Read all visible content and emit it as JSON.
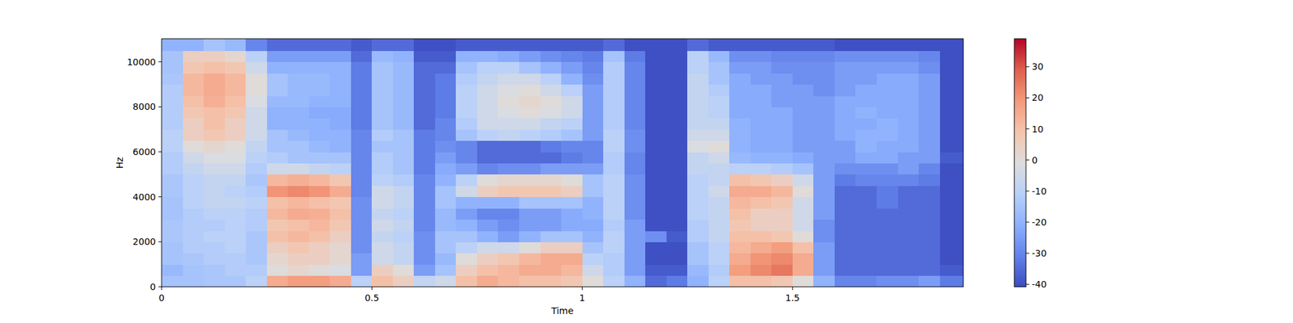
{
  "chart_data": {
    "type": "heatmap",
    "xlabel": "Time",
    "ylabel": "Hz",
    "xlim": [
      0,
      1.906
    ],
    "ylim": [
      0,
      11025
    ],
    "xticks": [
      0,
      0.5,
      1,
      1.5
    ],
    "yticks": [
      0,
      2000,
      4000,
      6000,
      8000,
      10000
    ],
    "x_bins": [
      0,
      0.05,
      0.1,
      0.15,
      0.2,
      0.25,
      0.3,
      0.35,
      0.4,
      0.45,
      0.5,
      0.55,
      0.6,
      0.65,
      0.7,
      0.75,
      0.8,
      0.85,
      0.9,
      0.95,
      1,
      1.05,
      1.1,
      1.15,
      1.2,
      1.25,
      1.3,
      1.35,
      1.4,
      1.45,
      1.5,
      1.55,
      1.6,
      1.65,
      1.7,
      1.75,
      1.8,
      1.85,
      1.906
    ],
    "y_bins": [
      0,
      500,
      1000,
      1500,
      2000,
      2500,
      3000,
      3500,
      4000,
      4500,
      5000,
      5500,
      6000,
      6500,
      7000,
      7500,
      8000,
      8500,
      9000,
      9500,
      10000,
      10500,
      11025
    ],
    "clim": [
      -40.8,
      39
    ],
    "cticks": [
      -40,
      -30,
      -20,
      -10,
      0,
      10,
      20,
      30
    ],
    "values": [
      [
        -15,
        -18,
        -15,
        -15,
        -14,
        -14,
        -15,
        -15,
        -14,
        -14,
        -12,
        -12,
        -10,
        -10,
        -12,
        -12,
        -12,
        -12,
        -14,
        -15,
        -15,
        -20
      ],
      [
        -15,
        -15,
        -14,
        -12,
        -12,
        -12,
        -12,
        -10,
        -10,
        -10,
        -8,
        -5,
        0,
        5,
        5,
        8,
        10,
        12,
        12,
        8,
        5,
        -20
      ],
      [
        -14,
        -14,
        -12,
        -12,
        -10,
        -12,
        -10,
        -8,
        -8,
        -8,
        -5,
        -2,
        2,
        8,
        10,
        10,
        14,
        15,
        15,
        10,
        5,
        -15
      ],
      [
        -14,
        -12,
        -12,
        -10,
        -10,
        -10,
        -10,
        -8,
        -10,
        -8,
        -5,
        -2,
        0,
        5,
        5,
        8,
        10,
        12,
        12,
        8,
        2,
        -18
      ],
      [
        -10,
        -12,
        -14,
        -14,
        -14,
        -12,
        -12,
        -10,
        -12,
        -14,
        -12,
        -10,
        -8,
        -5,
        -5,
        -5,
        -2,
        0,
        0,
        -5,
        -10,
        -30
      ],
      [
        15,
        0,
        2,
        5,
        10,
        8,
        12,
        10,
        20,
        12,
        -5,
        -12,
        -15,
        -15,
        -20,
        -20,
        -18,
        -15,
        -15,
        -20,
        -25,
        -35
      ],
      [
        18,
        2,
        5,
        8,
        12,
        10,
        15,
        12,
        22,
        14,
        -5,
        -15,
        -15,
        -18,
        -20,
        -20,
        -18,
        -18,
        -18,
        -20,
        -25,
        -35
      ],
      [
        18,
        0,
        5,
        5,
        10,
        12,
        14,
        10,
        20,
        12,
        -8,
        -15,
        -18,
        -20,
        -20,
        -22,
        -20,
        -18,
        -18,
        -20,
        -25,
        -35
      ],
      [
        15,
        -2,
        2,
        2,
        5,
        8,
        10,
        8,
        15,
        8,
        -10,
        -15,
        -20,
        -20,
        -22,
        -22,
        -20,
        -20,
        -20,
        -20,
        -25,
        -35
      ],
      [
        -10,
        -25,
        -25,
        -28,
        -28,
        -28,
        -28,
        -28,
        -30,
        -30,
        -30,
        -30,
        -30,
        -30,
        -32,
        -32,
        -32,
        -32,
        -32,
        -32,
        -35,
        -38
      ],
      [
        10,
        5,
        -5,
        -5,
        -8,
        -5,
        -8,
        -5,
        -5,
        -10,
        -12,
        -12,
        -15,
        -12,
        -15,
        -15,
        -15,
        -15,
        -15,
        -15,
        -18,
        -35
      ],
      [
        5,
        0,
        -8,
        -8,
        -10,
        -8,
        -10,
        -8,
        -8,
        -12,
        -15,
        -15,
        -15,
        -15,
        -18,
        -18,
        -18,
        -18,
        -18,
        -18,
        -20,
        -35
      ],
      [
        -8,
        -25,
        -28,
        -28,
        -28,
        -30,
        -30,
        -30,
        -30,
        -30,
        -32,
        -32,
        -32,
        -32,
        -35,
        -35,
        -35,
        -35,
        -35,
        -35,
        -38,
        -40
      ],
      [
        -5,
        -15,
        -18,
        -15,
        -15,
        -18,
        -18,
        -15,
        -15,
        -20,
        -22,
        -25,
        -28,
        -30,
        -30,
        -32,
        -32,
        -32,
        -32,
        -35,
        -38,
        -40
      ],
      [
        10,
        5,
        0,
        -10,
        -15,
        -20,
        -25,
        -20,
        -5,
        -10,
        -25,
        -30,
        -30,
        -15,
        -12,
        -10,
        -10,
        -10,
        -12,
        -15,
        -20,
        -38
      ],
      [
        15,
        10,
        5,
        -5,
        -20,
        -25,
        -30,
        -20,
        5,
        0,
        -30,
        -35,
        -35,
        -10,
        -5,
        -5,
        -5,
        -5,
        -8,
        -10,
        -20,
        -38
      ],
      [
        12,
        12,
        8,
        -5,
        -25,
        -28,
        -30,
        -20,
        8,
        2,
        -28,
        -35,
        -35,
        -8,
        -5,
        -2,
        0,
        -2,
        -5,
        -10,
        -22,
        -38
      ],
      [
        10,
        15,
        12,
        0,
        -20,
        -25,
        -25,
        -15,
        8,
        2,
        -28,
        -35,
        -35,
        -10,
        -5,
        0,
        2,
        0,
        -5,
        -15,
        -25,
        -38
      ],
      [
        10,
        15,
        15,
        5,
        -15,
        -25,
        -25,
        -15,
        8,
        2,
        -25,
        -35,
        -32,
        -12,
        -8,
        -2,
        0,
        -5,
        -10,
        -20,
        -28,
        -38
      ],
      [
        8,
        12,
        15,
        5,
        -15,
        -22,
        -22,
        -15,
        5,
        0,
        -25,
        -32,
        -30,
        -15,
        -10,
        -5,
        -5,
        -10,
        -20,
        -25,
        -30,
        -38
      ],
      [
        0,
        -5,
        -10,
        -15,
        -20,
        -22,
        -20,
        -20,
        -15,
        -15,
        -25,
        -30,
        -30,
        -25,
        -25,
        -25,
        -25,
        -25,
        -28,
        -30,
        -32,
        -38
      ],
      [
        -10,
        -12,
        -12,
        -10,
        -10,
        -12,
        -10,
        -10,
        -10,
        -10,
        -12,
        -12,
        -10,
        -10,
        -12,
        -12,
        -12,
        -12,
        -12,
        -12,
        -15,
        -35
      ],
      [
        -20,
        -25,
        -25,
        -25,
        -25,
        -25,
        -28,
        -28,
        -28,
        -28,
        -30,
        -30,
        -28,
        -28,
        -30,
        -30,
        -30,
        -30,
        -30,
        -30,
        -32,
        -40
      ],
      [
        -35,
        -38,
        -40,
        -40,
        -28,
        -40,
        -40,
        -40,
        -40,
        -40,
        -40,
        -40,
        -40,
        -40,
        -40,
        -40,
        -40,
        -40,
        -40,
        -40,
        -40,
        -40
      ],
      [
        -32,
        -38,
        -40,
        -40,
        -38,
        -40,
        -40,
        -40,
        -40,
        -40,
        -40,
        -40,
        -40,
        -40,
        -40,
        -40,
        -40,
        -40,
        -40,
        -40,
        -40,
        -40
      ],
      [
        -20,
        -18,
        -15,
        -15,
        -12,
        -12,
        -10,
        -10,
        -10,
        -10,
        -8,
        -8,
        -2,
        -5,
        -8,
        -8,
        -8,
        -8,
        -8,
        -10,
        -10,
        -35
      ],
      [
        -10,
        -12,
        -10,
        -10,
        -8,
        -8,
        -8,
        -8,
        -5,
        -8,
        -8,
        -5,
        0,
        -5,
        -8,
        -10,
        -10,
        -12,
        -15,
        -15,
        -18,
        -38
      ],
      [
        10,
        18,
        15,
        12,
        10,
        8,
        10,
        12,
        15,
        10,
        -10,
        -18,
        -20,
        -20,
        -20,
        -22,
        -22,
        -22,
        -22,
        -25,
        -28,
        -38
      ],
      [
        10,
        22,
        20,
        15,
        10,
        5,
        5,
        10,
        15,
        8,
        -10,
        -20,
        -22,
        -22,
        -22,
        -22,
        -22,
        -22,
        -25,
        -25,
        -28,
        -38
      ],
      [
        8,
        25,
        22,
        18,
        8,
        5,
        5,
        8,
        12,
        5,
        -12,
        -20,
        -22,
        -22,
        -22,
        -22,
        -25,
        -25,
        -25,
        -28,
        -30,
        -38
      ],
      [
        0,
        15,
        15,
        10,
        0,
        -5,
        -5,
        -5,
        0,
        -5,
        -15,
        -22,
        -25,
        -25,
        -25,
        -25,
        -25,
        -25,
        -28,
        -28,
        -30,
        -38
      ],
      [
        -20,
        -25,
        -25,
        -25,
        -28,
        -28,
        -25,
        -25,
        -25,
        -25,
        -25,
        -25,
        -25,
        -25,
        -25,
        -25,
        -25,
        -28,
        -28,
        -28,
        -30,
        -38
      ],
      [
        -30,
        -35,
        -35,
        -35,
        -35,
        -35,
        -35,
        -35,
        -35,
        -32,
        -28,
        -25,
        -25,
        -22,
        -22,
        -22,
        -22,
        -25,
        -25,
        -25,
        -28,
        -40
      ],
      [
        -30,
        -35,
        -35,
        -35,
        -35,
        -35,
        -35,
        -35,
        -35,
        -30,
        -28,
        -22,
        -20,
        -20,
        -22,
        -20,
        -22,
        -22,
        -25,
        -25,
        -28,
        -40
      ],
      [
        -28,
        -35,
        -35,
        -35,
        -35,
        -35,
        -35,
        -32,
        -32,
        -30,
        -28,
        -22,
        -22,
        -20,
        -20,
        -22,
        -22,
        -22,
        -22,
        -25,
        -28,
        -40
      ],
      [
        -28,
        -35,
        -35,
        -35,
        -35,
        -35,
        -35,
        -35,
        -35,
        -30,
        -25,
        -25,
        -22,
        -22,
        -22,
        -22,
        -22,
        -22,
        -22,
        -25,
        -28,
        -40
      ],
      [
        -25,
        -35,
        -35,
        -35,
        -35,
        -35,
        -35,
        -35,
        -35,
        -32,
        -30,
        -25,
        -25,
        -25,
        -25,
        -25,
        -25,
        -25,
        -25,
        -28,
        -30,
        -40
      ],
      [
        -32,
        -38,
        -40,
        -40,
        -40,
        -40,
        -40,
        -40,
        -40,
        -40,
        -40,
        -38,
        -40,
        -40,
        -40,
        -40,
        -40,
        -40,
        -40,
        -40,
        -40,
        -40
      ]
    ]
  }
}
